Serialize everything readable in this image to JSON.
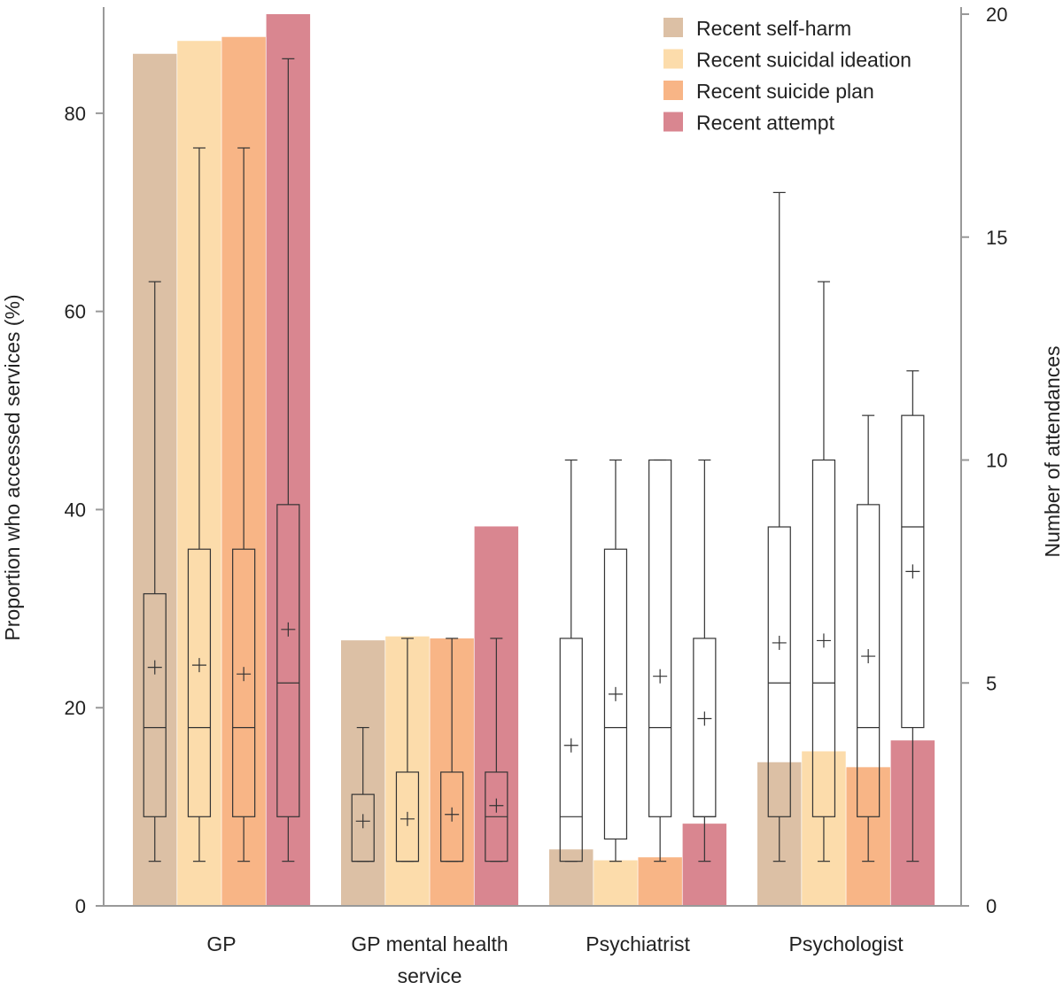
{
  "chart_data": {
    "type": "bar",
    "categories": [
      "GP",
      "GP mental health service",
      "Psychiatrist",
      "Psychologist"
    ],
    "category_label_lines": [
      [
        "GP"
      ],
      [
        "GP mental health",
        "service"
      ],
      [
        "Psychiatrist"
      ],
      [
        "Psychologist"
      ]
    ],
    "ylabel": "Proportion who accessed services (%)",
    "y2label": "Number of attendances",
    "ylim": [
      0,
      90
    ],
    "y2lim": [
      0,
      20
    ],
    "yticks": [
      0,
      20,
      40,
      60,
      80
    ],
    "y2ticks": [
      0,
      5,
      10,
      15,
      20
    ],
    "legend_position": "top-right",
    "grid": false,
    "series": [
      {
        "name": "Recent self-harm",
        "color": "#dcc0a5",
        "values": [
          86,
          26.8,
          5.7,
          14.5
        ],
        "boxplots": [
          {
            "whisker_low": 1,
            "q1": 2,
            "median": 4,
            "q3": 7,
            "whisker_high": 14,
            "mean": 5.35
          },
          {
            "whisker_low": 1,
            "q1": 1,
            "median": 1,
            "q3": 2.5,
            "whisker_high": 4,
            "mean": 1.9
          },
          {
            "whisker_low": 1,
            "q1": 1,
            "median": 2,
            "q3": 6,
            "whisker_high": 10,
            "mean": 3.6
          },
          {
            "whisker_low": 1,
            "q1": 2,
            "median": 5,
            "q3": 8.5,
            "whisker_high": 16,
            "mean": 5.9
          }
        ]
      },
      {
        "name": "Recent suicidal ideation",
        "color": "#fcdcab",
        "values": [
          87.3,
          27.2,
          4.6,
          15.6
        ],
        "boxplots": [
          {
            "whisker_low": 1,
            "q1": 2,
            "median": 4,
            "q3": 8,
            "whisker_high": 17,
            "mean": 5.4
          },
          {
            "whisker_low": 1,
            "q1": 1,
            "median": 1,
            "q3": 3,
            "whisker_high": 6,
            "mean": 1.95
          },
          {
            "whisker_low": 1,
            "q1": 1.5,
            "median": 4,
            "q3": 8,
            "whisker_high": 10,
            "mean": 4.75
          },
          {
            "whisker_low": 1,
            "q1": 2,
            "median": 5,
            "q3": 10,
            "whisker_high": 14,
            "mean": 5.95
          }
        ]
      },
      {
        "name": "Recent suicide plan",
        "color": "#f8b586",
        "values": [
          87.7,
          27,
          4.9,
          14
        ],
        "boxplots": [
          {
            "whisker_low": 1,
            "q1": 2,
            "median": 4,
            "q3": 8,
            "whisker_high": 17,
            "mean": 5.2
          },
          {
            "whisker_low": 1,
            "q1": 1,
            "median": 1,
            "q3": 3,
            "whisker_high": 6,
            "mean": 2.05
          },
          {
            "whisker_low": 1,
            "q1": 2,
            "median": 4,
            "q3": 10,
            "whisker_high": 10,
            "mean": 5.15
          },
          {
            "whisker_low": 1,
            "q1": 2,
            "median": 4,
            "q3": 9,
            "whisker_high": 11,
            "mean": 5.6
          }
        ]
      },
      {
        "name": "Recent attempt",
        "color": "#d98690",
        "values": [
          90,
          38.3,
          8.3,
          16.7
        ],
        "boxplots": [
          {
            "whisker_low": 1,
            "q1": 2,
            "median": 5,
            "q3": 9,
            "whisker_high": 19,
            "mean": 6.2
          },
          {
            "whisker_low": 1,
            "q1": 1,
            "median": 2,
            "q3": 3,
            "whisker_high": 6,
            "mean": 2.25
          },
          {
            "whisker_low": 1,
            "q1": 2,
            "median": 2,
            "q3": 6,
            "whisker_high": 10,
            "mean": 4.2
          },
          {
            "whisker_low": 1,
            "q1": 4,
            "median": 8.5,
            "q3": 11,
            "whisker_high": 12,
            "mean": 7.5
          }
        ]
      }
    ]
  }
}
